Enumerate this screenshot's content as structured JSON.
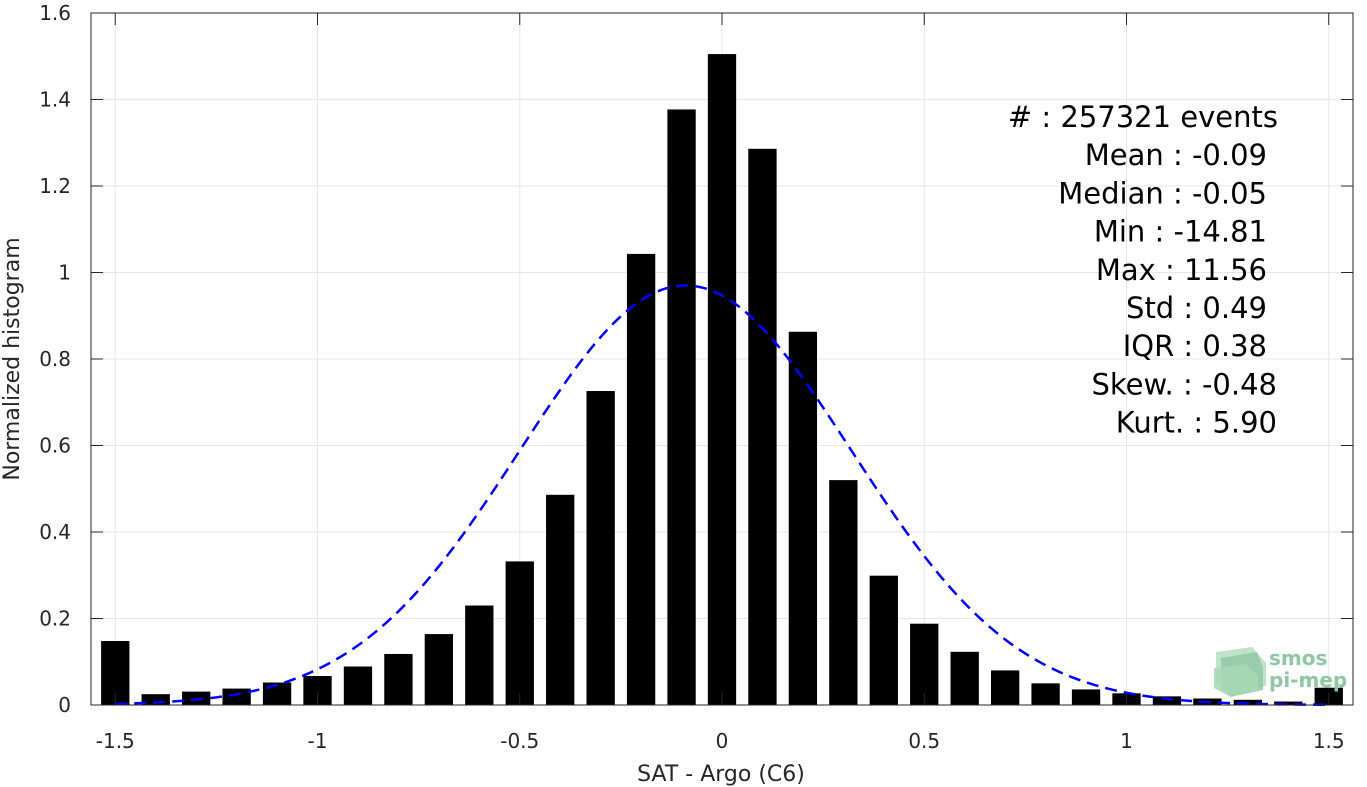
{
  "chart_data": {
    "type": "bar",
    "xlabel": "SAT - Argo (C6)",
    "ylabel": "Normalized histogram",
    "xlim": [
      -1.56,
      1.56
    ],
    "ylim": [
      0,
      1.6
    ],
    "grid": true,
    "x_ticks": [
      -1.5,
      -1,
      -0.5,
      0,
      0.5,
      1,
      1.5
    ],
    "x_tick_labels": [
      "-1.5",
      "-1",
      "-0.5",
      "0",
      "0.5",
      "1",
      "1.5"
    ],
    "y_ticks": [
      0,
      0.2,
      0.4,
      0.6,
      0.8,
      1,
      1.2,
      1.4,
      1.6
    ],
    "y_tick_labels": [
      "0",
      "0.2",
      "0.4",
      "0.6",
      "0.8",
      "1",
      "1.2",
      "1.4",
      "1.6"
    ],
    "bar_width": 0.07,
    "bar_color": "#000000",
    "x": [
      -1.5,
      -1.4,
      -1.3,
      -1.2,
      -1.1,
      -1.0,
      -0.9,
      -0.8,
      -0.7,
      -0.6,
      -0.5,
      -0.4,
      -0.3,
      -0.2,
      -0.1,
      0.0,
      0.1,
      0.2,
      0.3,
      0.4,
      0.5,
      0.6,
      0.7,
      0.8,
      0.9,
      1.0,
      1.1,
      1.2,
      1.3,
      1.4,
      1.5
    ],
    "values": [
      0.148,
      0.025,
      0.031,
      0.038,
      0.052,
      0.067,
      0.089,
      0.118,
      0.164,
      0.23,
      0.332,
      0.486,
      0.726,
      1.043,
      1.377,
      1.505,
      1.286,
      0.863,
      0.52,
      0.299,
      0.188,
      0.123,
      0.08,
      0.05,
      0.036,
      0.027,
      0.02,
      0.015,
      0.012,
      0.008,
      0.04
    ],
    "fit_curve": {
      "type": "gaussian",
      "color": "#0000ff",
      "style": "dashed",
      "mean": -0.09,
      "std": 0.41,
      "peak": 0.97
    },
    "stats": [
      {
        "label": "#  ",
        "value": ": 257321 events"
      },
      {
        "label": "Mean ",
        "value": ": -0.09"
      },
      {
        "label": "Median ",
        "value": ": -0.05"
      },
      {
        "label": "Min ",
        "value": ": -14.81"
      },
      {
        "label": "Max ",
        "value": ": 11.56"
      },
      {
        "label": "Std ",
        "value": ": 0.49"
      },
      {
        "label": "IQR ",
        "value": ": 0.38"
      },
      {
        "label": "Skew. ",
        "value": ": -0.48"
      },
      {
        "label": "Kurt. ",
        "value": ": 5.90"
      }
    ]
  },
  "logo": {
    "line1": "smos",
    "line2": "pi-mep"
  }
}
